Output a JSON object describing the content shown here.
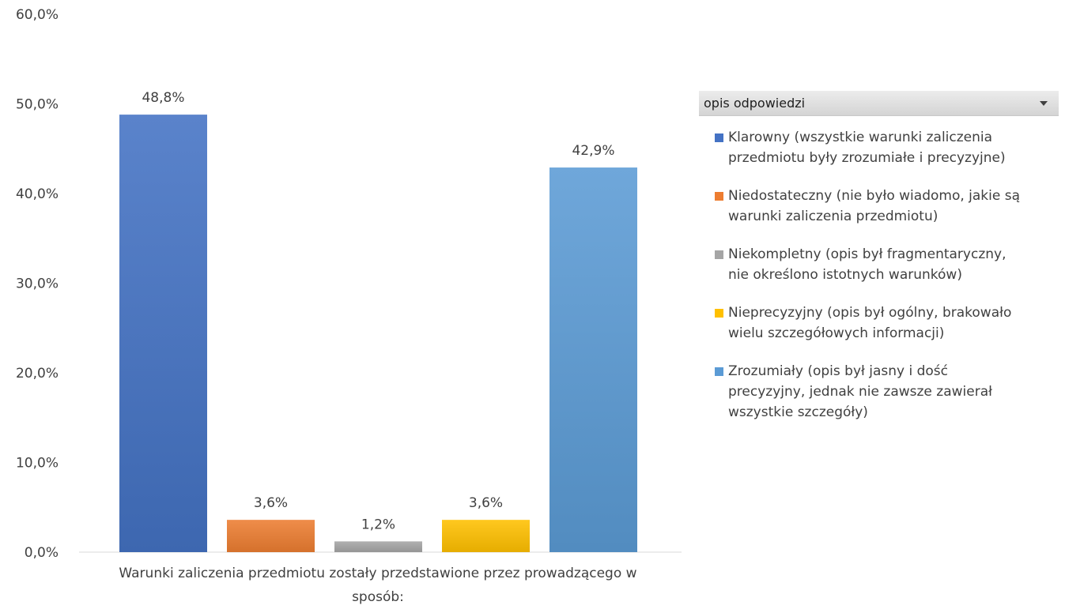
{
  "colors": {
    "klarowny": "#4472C4",
    "niedostateczny": "#ED7D31",
    "niekompletny": "#A5A5A5",
    "nieprecyzyjny": "#FFC000",
    "zrozumialy": "#5B9BD5"
  },
  "legend": {
    "title": "opis odpowiedzi",
    "dropdown_icon": "chevron-down-icon"
  },
  "chart_data": {
    "type": "bar",
    "xlabel": "",
    "ylabel": "",
    "category_label_lines": [
      "Warunki zaliczenia przedmiotu zostały przedstawione przez prowadzącego w",
      "sposób:"
    ],
    "y_axis": {
      "min": 0,
      "max": 60,
      "step": 10,
      "tick_labels": [
        "0,0%",
        "10,0%",
        "20,0%",
        "30,0%",
        "40,0%",
        "50,0%",
        "60,0%"
      ]
    },
    "grid": false,
    "legend_position": "right",
    "series": [
      {
        "key": "klarowny",
        "name": "Klarowny (wszystkie warunki zaliczenia przedmiotu były zrozumiałe i precyzyjne)",
        "name_lines": [
          "Klarowny (wszystkie warunki zaliczenia",
          "przedmiotu były zrozumiałe i precyzyjne)"
        ],
        "value": 48.8,
        "label": "48,8%",
        "color": "#4472C4"
      },
      {
        "key": "niedostateczny",
        "name": "Niedostateczny (nie było wiadomo, jakie są warunki zaliczenia przedmiotu)",
        "name_lines": [
          "Niedostateczny (nie było wiadomo, jakie są",
          "warunki zaliczenia przedmiotu)"
        ],
        "value": 3.6,
        "label": "3,6%",
        "color": "#ED7D31"
      },
      {
        "key": "niekompletny",
        "name": "Niekompletny (opis był fragmentaryczny, nie określono istotnych warunków)",
        "name_lines": [
          "Niekompletny (opis był fragmentaryczny,",
          "nie określono istotnych warunków)"
        ],
        "value": 1.2,
        "label": "1,2%",
        "color": "#A5A5A5"
      },
      {
        "key": "nieprecyzyjny",
        "name": "Nieprecyzyjny (opis był ogólny, brakowało wielu szczegółowych informacji)",
        "name_lines": [
          "Nieprecyzyjny (opis był ogólny, brakowało",
          "wielu szczegółowych informacji)"
        ],
        "value": 3.6,
        "label": "3,6%",
        "color": "#FFC000"
      },
      {
        "key": "zrozumialy",
        "name": "Zrozumiały (opis był jasny i dość precyzyjny, jednak nie zawsze zawierał wszystkie szczegóły)",
        "name_lines": [
          "Zrozumiały (opis był jasny i dość",
          "precyzyjny, jednak nie zawsze zawierał",
          "wszystkie szczegóły)"
        ],
        "value": 42.9,
        "label": "42,9%",
        "color": "#5B9BD5"
      }
    ]
  }
}
